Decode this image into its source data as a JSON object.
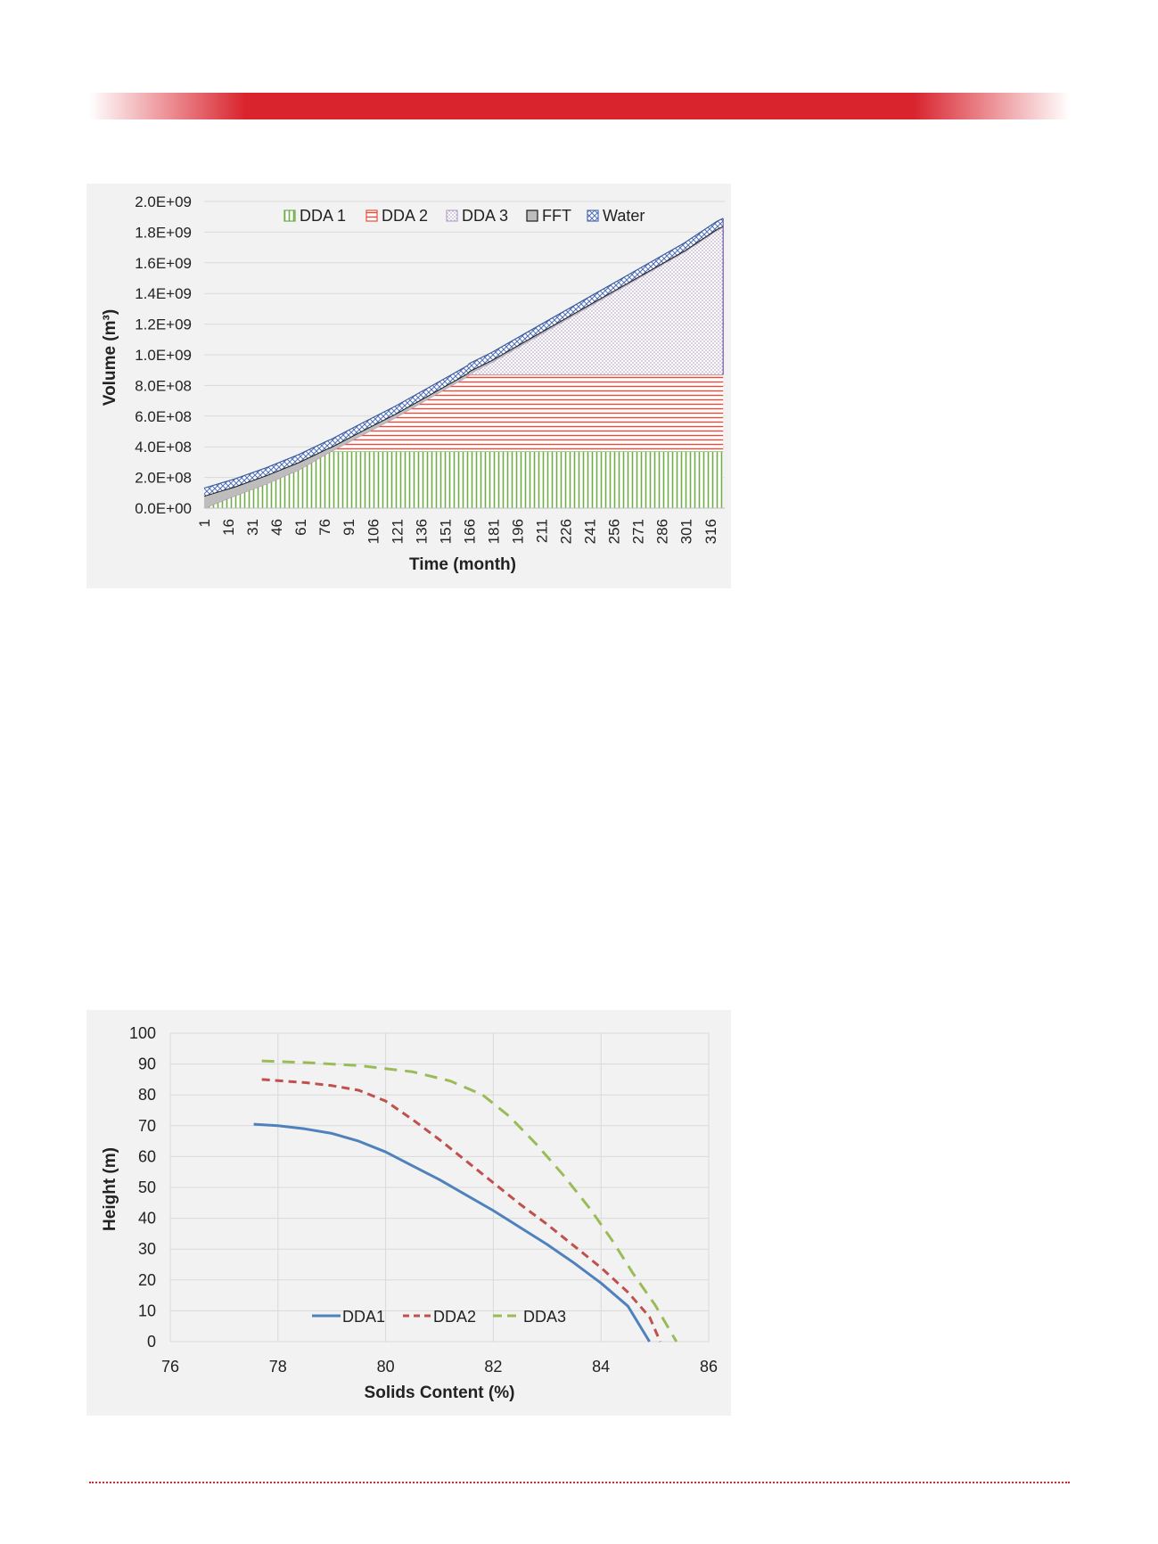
{
  "colors": {
    "banner_red": "#d9232d",
    "panel_bg": "#f2f2f2",
    "grid": "#d9d9d9"
  },
  "chart_data": [
    {
      "type": "area",
      "stacked": true,
      "title": "",
      "xlabel": "Time (month)",
      "ylabel": "Volume (m³)",
      "ylim": [
        0,
        2000000000
      ],
      "y_ticks": [
        "0.0E+00",
        "2.0E+08",
        "4.0E+08",
        "6.0E+08",
        "8.0E+08",
        "1.0E+09",
        "1.2E+09",
        "1.4E+09",
        "1.6E+09",
        "1.8E+09",
        "2.0E+09"
      ],
      "x_ticks": [
        "1",
        "16",
        "31",
        "46",
        "61",
        "76",
        "91",
        "106",
        "121",
        "136",
        "151",
        "166",
        "181",
        "196",
        "211",
        "226",
        "241",
        "256",
        "271",
        "286",
        "301",
        "316"
      ],
      "xlim": [
        1,
        325
      ],
      "grid": true,
      "legend_position": "top-center",
      "x": [
        1,
        20,
        40,
        60,
        78,
        80,
        100,
        120,
        140,
        160,
        165,
        166,
        180,
        200,
        220,
        240,
        260,
        280,
        300,
        320,
        324
      ],
      "series": [
        {
          "name": "DDA 1",
          "color": "#70ad47",
          "pattern": "vertical",
          "values": [
            0,
            80000000,
            160000000,
            250000000,
            360000000,
            370000000,
            370000000,
            370000000,
            370000000,
            370000000,
            370000000,
            370000000,
            370000000,
            370000000,
            370000000,
            370000000,
            370000000,
            370000000,
            370000000,
            370000000,
            370000000
          ]
        },
        {
          "name": "DDA 2",
          "color": "#e84c3d",
          "pattern": "horizontal",
          "values": [
            0,
            0,
            0,
            0,
            0,
            0,
            110000000,
            220000000,
            340000000,
            460000000,
            490000000,
            500000000,
            500000000,
            500000000,
            500000000,
            500000000,
            500000000,
            500000000,
            500000000,
            500000000,
            500000000
          ]
        },
        {
          "name": "DDA 3",
          "color": "#b9a3c9",
          "pattern": "dots",
          "values": [
            0,
            0,
            0,
            0,
            0,
            0,
            0,
            0,
            0,
            0,
            0,
            5000000,
            80000000,
            200000000,
            320000000,
            440000000,
            560000000,
            680000000,
            800000000,
            940000000,
            960000000
          ]
        },
        {
          "name": "FFT",
          "color": "#7f7f7f",
          "pattern": "solid",
          "values": [
            80000000,
            60000000,
            55000000,
            50000000,
            30000000,
            28000000,
            28000000,
            25000000,
            22000000,
            20000000,
            20000000,
            18000000,
            15000000,
            15000000,
            14000000,
            13000000,
            12000000,
            11000000,
            10000000,
            10000000,
            10000000
          ]
        },
        {
          "name": "Water",
          "color": "#4f6fb5",
          "pattern": "crosshatch",
          "values": [
            50000000,
            50000000,
            50000000,
            50000000,
            50000000,
            50000000,
            50000000,
            50000000,
            50000000,
            50000000,
            50000000,
            50000000,
            50000000,
            50000000,
            50000000,
            50000000,
            50000000,
            50000000,
            50000000,
            50000000,
            50000000
          ]
        }
      ]
    },
    {
      "type": "line",
      "title": "",
      "xlabel": "Solids Content (%)",
      "ylabel": "Height (m)",
      "xlim": [
        76,
        86
      ],
      "ylim": [
        0,
        100
      ],
      "x_ticks": [
        "76",
        "78",
        "80",
        "82",
        "84",
        "86"
      ],
      "y_ticks": [
        "0",
        "10",
        "20",
        "30",
        "40",
        "50",
        "60",
        "70",
        "80",
        "90",
        "100"
      ],
      "grid": true,
      "legend_position": "bottom-center",
      "series": [
        {
          "name": "DDA1",
          "color": "#4f81bd",
          "dash": "solid",
          "points": [
            [
              77.55,
              70.5
            ],
            [
              78,
              70
            ],
            [
              78.5,
              69
            ],
            [
              79,
              67.5
            ],
            [
              79.5,
              65
            ],
            [
              80,
              61.5
            ],
            [
              80.5,
              57
            ],
            [
              81,
              52.5
            ],
            [
              81.5,
              47.5
            ],
            [
              82,
              42.5
            ],
            [
              82.5,
              37
            ],
            [
              83,
              31.5
            ],
            [
              83.5,
              25.5
            ],
            [
              84,
              19
            ],
            [
              84.5,
              11.5
            ],
            [
              84.9,
              0
            ]
          ]
        },
        {
          "name": "DDA2",
          "color": "#c0504d",
          "dash": "dashed",
          "points": [
            [
              77.7,
              85
            ],
            [
              78.5,
              84
            ],
            [
              79,
              83
            ],
            [
              79.5,
              81.5
            ],
            [
              80,
              78
            ],
            [
              80.5,
              72
            ],
            [
              81,
              65.5
            ],
            [
              81.5,
              58.5
            ],
            [
              82,
              51.5
            ],
            [
              82.5,
              44.5
            ],
            [
              83,
              38
            ],
            [
              83.5,
              31
            ],
            [
              84,
              24
            ],
            [
              84.5,
              16
            ],
            [
              84.9,
              8
            ],
            [
              85.1,
              0
            ]
          ]
        },
        {
          "name": "DDA3",
          "color": "#9bbb59",
          "dash": "dashed",
          "points": [
            [
              77.7,
              91
            ],
            [
              78.5,
              90.5
            ],
            [
              79.5,
              89.5
            ],
            [
              80.5,
              87.5
            ],
            [
              81.2,
              84.5
            ],
            [
              81.8,
              80
            ],
            [
              82.3,
              73
            ],
            [
              82.8,
              64
            ],
            [
              83.3,
              54
            ],
            [
              83.8,
              43
            ],
            [
              84.2,
              33
            ],
            [
              84.6,
              22
            ],
            [
              85,
              12
            ],
            [
              85.2,
              6
            ],
            [
              85.4,
              0
            ]
          ]
        }
      ]
    }
  ]
}
